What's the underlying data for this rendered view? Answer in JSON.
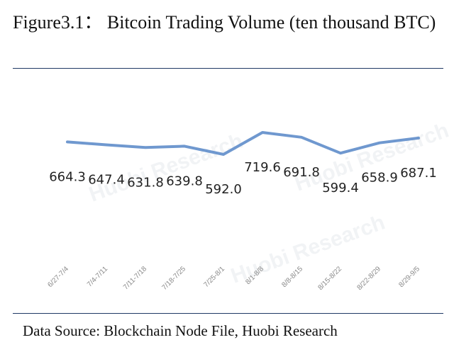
{
  "header": {
    "title": "Figure3.1： Bitcoin Trading Volume (ten thousand BTC)"
  },
  "footer": {
    "source": "Data Source: Blockchain Node File, Huobi Research"
  },
  "watermark": {
    "text": "Huobi Research"
  },
  "chart_data": {
    "type": "line",
    "title": "",
    "xlabel": "",
    "ylabel": "",
    "categories": [
      "6/27-7/4",
      "7/4-7/11",
      "7/11-7/18",
      "7/18-7/25",
      "7/25-8/1",
      "8/1-8/8",
      "8/8-8/15",
      "8/15-8/22",
      "8/22-8/29",
      "8/29-9/5"
    ],
    "series": [
      {
        "values": [
          664.3,
          647.4,
          631.8,
          639.8,
          592.0,
          719.6,
          691.8,
          599.4,
          658.9,
          687.1
        ],
        "labels": [
          "664.3",
          "647.4",
          "631.8",
          "639.8",
          "592.0",
          "719.6",
          "691.8",
          "599.4",
          "658.9",
          "687.1"
        ],
        "color": "#6f98cf"
      }
    ],
    "grid": false,
    "legend": "none"
  }
}
